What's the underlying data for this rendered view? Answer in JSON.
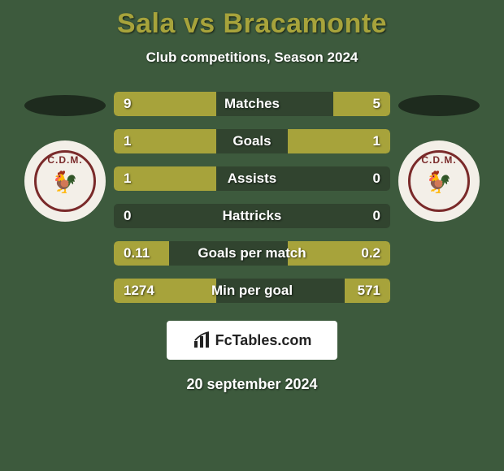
{
  "background_color": "#3d5a3d",
  "title_color": "#a7a33b",
  "title": "Sala vs Bracamonte",
  "subtitle": "Club competitions, Season 2024",
  "bottom_date": "20 september 2024",
  "brand_text": "FcTables.com",
  "shadow_color": "#1e2b1e",
  "crest_outer_color": "#f3efe8",
  "crest_border_color": "#7a2a2a",
  "crest_label_color": "#7a2a2a",
  "crest_label": "C.D.M.",
  "ellipse_left_color": "#1e2b1e",
  "ellipse_right_color": "#1e2b1e",
  "comparison": {
    "type": "bar",
    "bar_bg_color": "#31442f",
    "left_fill_color": "#a7a33b",
    "right_fill_color": "#a7a33b",
    "half_width_pct": 37,
    "rows": [
      {
        "label": "Matches",
        "left_val": "9",
        "right_val": "5",
        "left_pct": 37,
        "right_pct": 20.6
      },
      {
        "label": "Goals",
        "left_val": "1",
        "right_val": "1",
        "left_pct": 37,
        "right_pct": 37
      },
      {
        "label": "Assists",
        "left_val": "1",
        "right_val": "0",
        "left_pct": 37,
        "right_pct": 0
      },
      {
        "label": "Hattricks",
        "left_val": "0",
        "right_val": "0",
        "left_pct": 0,
        "right_pct": 0
      },
      {
        "label": "Goals per match",
        "left_val": "0.11",
        "right_val": "0.2",
        "left_pct": 20,
        "right_pct": 37
      },
      {
        "label": "Min per goal",
        "left_val": "1274",
        "right_val": "571",
        "left_pct": 37,
        "right_pct": 16.6
      }
    ]
  }
}
